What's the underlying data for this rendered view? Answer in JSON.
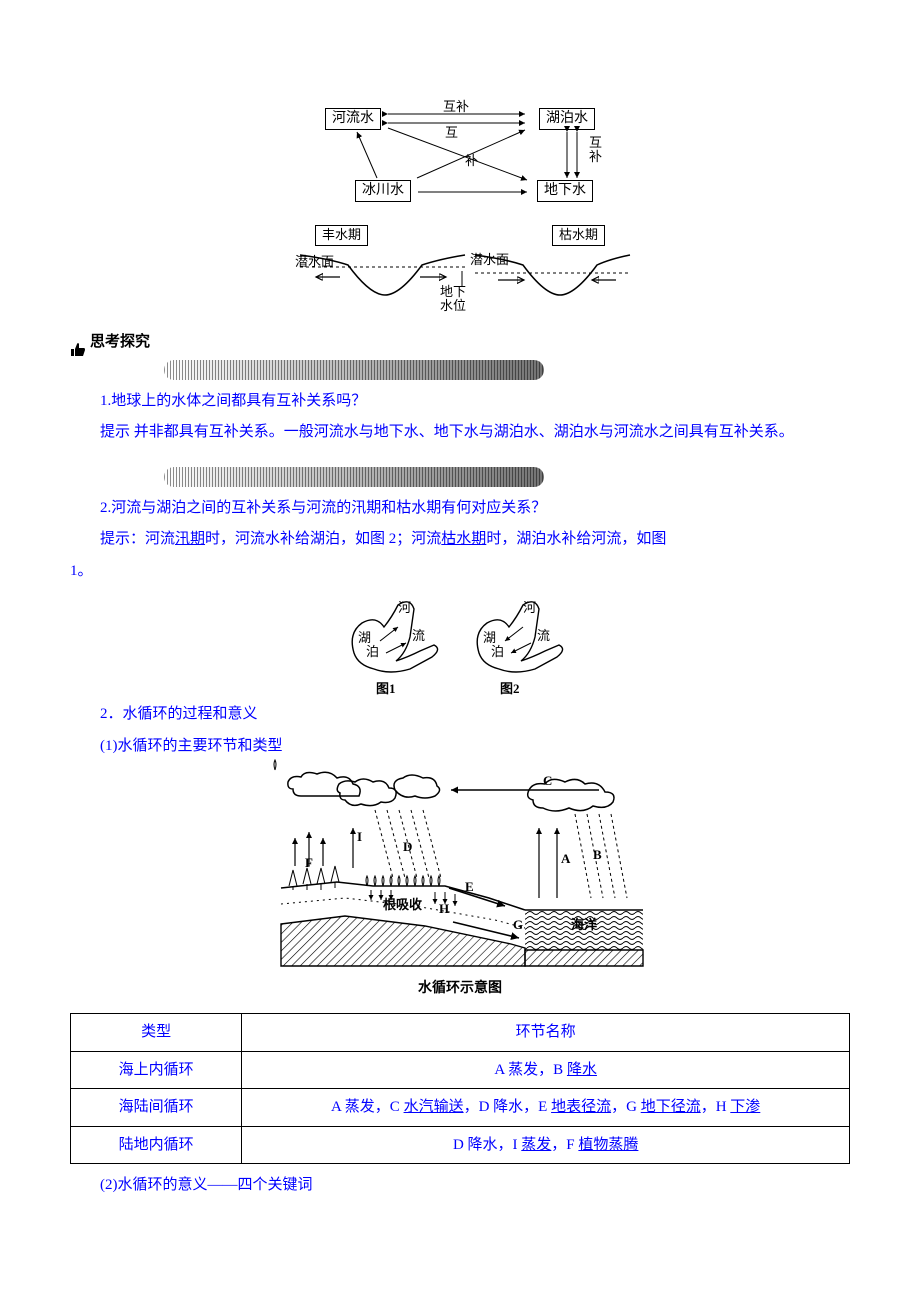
{
  "diag1": {
    "boxes": {
      "river": "河流水",
      "lake": "湖泊水",
      "glacier": "冰川水",
      "ground": "地下水"
    },
    "labels": {
      "hubu_top": "互补",
      "hu": "互",
      "bu": "补",
      "hubu_right": "互补"
    }
  },
  "diag2": {
    "labels": {
      "feng": "丰水期",
      "ku": "枯水期",
      "qian_l": "潜水面",
      "qian_r": "潜水面",
      "dxsw": "地下\n水位"
    }
  },
  "think": {
    "label": "思考探究"
  },
  "q1": {
    "prompt": "1.地球上的水体之间都具有互补关系吗？",
    "tip_prefix": "提示",
    "tip_body": " 并非都具有互补关系。一般河流水与地下水、地下水与湖泊水、湖泊水与河流水之间具有互补关系。"
  },
  "q2": {
    "prompt": "2.河流与湖泊之间的互补关系与河流的汛期和枯水期有何对应关系？",
    "tip_prefix": "提示：河流",
    "underline_a": "汛期",
    "mid_a": "时，河流水补给湖泊，如图 2；河流",
    "underline_b": "枯水期",
    "mid_b": "时，湖泊水补给河流，如图",
    "tail": "1。"
  },
  "diag3": {
    "labels": {
      "hu": "湖",
      "pu": "泊",
      "he": "河",
      "liu": "流",
      "cap1": "图1",
      "cap2": "图2"
    }
  },
  "sec2": {
    "title": "2．水循环的过程和意义",
    "sub": "(1)水循环的主要环节和类型"
  },
  "diag4": {
    "labels": {
      "A": "A",
      "B": "B",
      "C": "C",
      "D": "D",
      "E": "E",
      "F": "F",
      "G": "G",
      "H": "H",
      "I": "I",
      "root": "根吸收",
      "ocean": "海洋",
      "caption": "水循环示意图"
    }
  },
  "table": {
    "head": {
      "type": "类型",
      "steps": "环节名称"
    },
    "rows": [
      {
        "type": "海上内循环",
        "parts": [
          "A 蒸发，B ",
          {
            "u": "降水"
          }
        ]
      },
      {
        "type": "海陆间循环",
        "parts": [
          "A 蒸发，C ",
          {
            "u": "水汽输送"
          },
          "，D 降水，E ",
          {
            "u": "地表径流"
          },
          "，G ",
          {
            "u": "地下径流"
          },
          "，H ",
          {
            "u": "下渗"
          }
        ]
      },
      {
        "type": "陆地内循环",
        "parts": [
          "D 降水，I ",
          {
            "u": "蒸发"
          },
          "，F ",
          {
            "u": "植物蒸腾"
          }
        ]
      }
    ]
  },
  "sec3": {
    "text": "(2)水循环的意义——四个关键词"
  },
  "colors": {
    "blue": "#0000ff",
    "black": "#000000",
    "bg": "#ffffff"
  }
}
